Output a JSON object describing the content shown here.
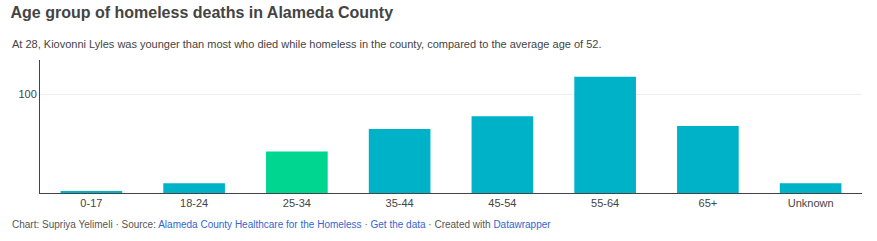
{
  "chart_data": {
    "type": "bar",
    "title": "Age group of homeless deaths in Alameda County",
    "subtitle": "At 28, Kiovonni Lyles was younger than most who died while homeless in the county, compared to the average age of 52.",
    "categories": [
      "0-17",
      "18-24",
      "25-34",
      "35-44",
      "45-54",
      "55-64",
      "65+",
      "Unknown"
    ],
    "values": [
      2,
      10,
      42,
      65,
      78,
      118,
      68,
      10
    ],
    "colors": [
      "#00b2c8",
      "#00b2c8",
      "#00d68f",
      "#00b2c8",
      "#00b2c8",
      "#00b2c8",
      "#00b2c8",
      "#00b2c8"
    ],
    "ylim": [
      0,
      135
    ],
    "yticks": [
      100
    ],
    "grid": true,
    "footer": [
      {
        "text": "Chart: Supriya Yelimeli · Source: ",
        "color": "#555555"
      },
      {
        "text": "Alameda County Healthcare for the Homeless",
        "color": "#3366cc"
      },
      {
        "text": " · ",
        "color": "#555555"
      },
      {
        "text": "Get the data",
        "color": "#3366cc"
      },
      {
        "text": " · Created with ",
        "color": "#555555"
      },
      {
        "text": "Datawrapper",
        "color": "#3366cc"
      }
    ]
  }
}
